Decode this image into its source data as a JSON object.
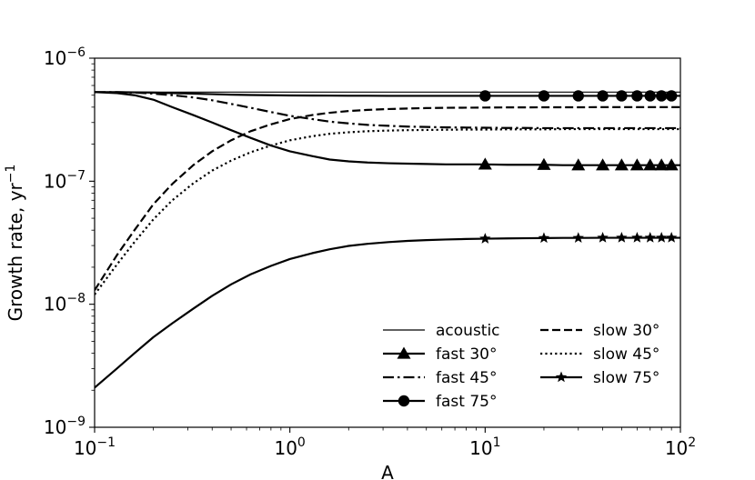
{
  "chart_data": {
    "type": "line",
    "title": "",
    "xscale": "log",
    "yscale": "log",
    "xlabel": "A",
    "ylabel": "Growth rate, yr",
    "ylabel_sup": "−1",
    "xlim": [
      0.1,
      100
    ],
    "ylim": [
      1e-09,
      1e-06
    ],
    "x_ticks": [
      {
        "base": "10",
        "exp": "−1"
      },
      {
        "base": "10",
        "exp": "0"
      },
      {
        "base": "10",
        "exp": "1"
      },
      {
        "base": "10",
        "exp": "2"
      }
    ],
    "y_ticks": [
      {
        "base": "10",
        "exp": "−9"
      },
      {
        "base": "10",
        "exp": "−8"
      },
      {
        "base": "10",
        "exp": "−7"
      },
      {
        "base": "10",
        "exp": "−6"
      }
    ],
    "legend_position": "lower-right",
    "x": [
      0.1,
      0.13,
      0.16,
      0.2,
      0.25,
      0.32,
      0.4,
      0.5,
      0.63,
      0.8,
      1.0,
      1.3,
      1.6,
      2.0,
      2.5,
      3.2,
      4.0,
      5.0,
      6.3,
      8.0,
      10,
      13,
      16,
      20,
      25,
      32,
      40,
      50,
      63,
      80,
      100
    ],
    "series": [
      {
        "name": "acoustic",
        "style": "solid-thin",
        "marker": "none",
        "values": [
          5.3e-07,
          5.3e-07,
          5.3e-07,
          5.3e-07,
          5.3e-07,
          5.3e-07,
          5.3e-07,
          5.3e-07,
          5.3e-07,
          5.3e-07,
          5.3e-07,
          5.3e-07,
          5.3e-07,
          5.3e-07,
          5.3e-07,
          5.3e-07,
          5.3e-07,
          5.3e-07,
          5.3e-07,
          5.3e-07,
          5.3e-07,
          5.3e-07,
          5.3e-07,
          5.3e-07,
          5.3e-07,
          5.3e-07,
          5.3e-07,
          5.3e-07,
          5.3e-07,
          5.3e-07,
          5.3e-07
        ]
      },
      {
        "name": "fast 30°",
        "style": "solid",
        "marker": "triangle",
        "values": [
          5.3e-07,
          5.2e-07,
          5e-07,
          4.6e-07,
          4e-07,
          3.45e-07,
          3e-07,
          2.6e-07,
          2.25e-07,
          1.95e-07,
          1.75e-07,
          1.6e-07,
          1.5e-07,
          1.45e-07,
          1.42e-07,
          1.4e-07,
          1.39e-07,
          1.38e-07,
          1.37e-07,
          1.37e-07,
          1.37e-07,
          1.36e-07,
          1.36e-07,
          1.36e-07,
          1.35e-07,
          1.35e-07,
          1.35e-07,
          1.35e-07,
          1.35e-07,
          1.35e-07,
          1.35e-07
        ]
      },
      {
        "name": "fast 45°",
        "style": "dashdot",
        "marker": "none",
        "values": [
          5.3e-07,
          5.3e-07,
          5.25e-07,
          5.15e-07,
          5e-07,
          4.8e-07,
          4.55e-07,
          4.25e-07,
          3.95e-07,
          3.65e-07,
          3.4e-07,
          3.2e-07,
          3.05e-07,
          2.95e-07,
          2.87e-07,
          2.82e-07,
          2.78e-07,
          2.76e-07,
          2.74e-07,
          2.73e-07,
          2.72e-07,
          2.71e-07,
          2.71e-07,
          2.7e-07,
          2.7e-07,
          2.7e-07,
          2.7e-07,
          2.7e-07,
          2.7e-07,
          2.7e-07,
          2.7e-07
        ]
      },
      {
        "name": "fast 75°",
        "style": "solid",
        "marker": "circle",
        "values": [
          5.3e-07,
          5.3e-07,
          5.28e-07,
          5.25e-07,
          5.2e-07,
          5.15e-07,
          5.1e-07,
          5.05e-07,
          5.02e-07,
          5e-07,
          4.98e-07,
          4.97e-07,
          4.96e-07,
          4.95e-07,
          4.95e-07,
          4.94e-07,
          4.94e-07,
          4.94e-07,
          4.94e-07,
          4.94e-07,
          4.94e-07,
          4.94e-07,
          4.94e-07,
          4.94e-07,
          4.94e-07,
          4.94e-07,
          4.94e-07,
          4.94e-07,
          4.94e-07,
          4.94e-07,
          4.94e-07
        ]
      },
      {
        "name": "slow 30°",
        "style": "dashed",
        "marker": "none",
        "values": [
          1.3e-08,
          2.5e-08,
          4e-08,
          6.5e-08,
          9.5e-08,
          1.35e-07,
          1.75e-07,
          2.15e-07,
          2.55e-07,
          2.9e-07,
          3.2e-07,
          3.45e-07,
          3.6e-07,
          3.72e-07,
          3.8e-07,
          3.86e-07,
          3.9e-07,
          3.93e-07,
          3.95e-07,
          3.96e-07,
          3.97e-07,
          3.98e-07,
          3.98e-07,
          3.99e-07,
          3.99e-07,
          3.99e-07,
          4e-07,
          4e-07,
          4e-07,
          4e-07,
          4e-07
        ]
      },
      {
        "name": "slow 45°",
        "style": "dotted",
        "marker": "none",
        "values": [
          1.2e-08,
          2.1e-08,
          3.2e-08,
          4.9e-08,
          7e-08,
          9.6e-08,
          1.22e-07,
          1.47e-07,
          1.72e-07,
          1.95e-07,
          2.15e-07,
          2.32e-07,
          2.43e-07,
          2.5e-07,
          2.55e-07,
          2.58e-07,
          2.6e-07,
          2.61e-07,
          2.62e-07,
          2.63e-07,
          2.63e-07,
          2.64e-07,
          2.64e-07,
          2.64e-07,
          2.65e-07,
          2.65e-07,
          2.65e-07,
          2.65e-07,
          2.65e-07,
          2.65e-07,
          2.65e-07
        ]
      },
      {
        "name": "slow 75°",
        "style": "solid",
        "marker": "star",
        "values": [
          2.1e-09,
          3e-09,
          4e-09,
          5.4e-09,
          7e-09,
          9.2e-09,
          1.17e-08,
          1.45e-08,
          1.75e-08,
          2.05e-08,
          2.33e-08,
          2.6e-08,
          2.8e-08,
          2.98e-08,
          3.1e-08,
          3.2e-08,
          3.27e-08,
          3.32e-08,
          3.36e-08,
          3.39e-08,
          3.41e-08,
          3.43e-08,
          3.44e-08,
          3.45e-08,
          3.46e-08,
          3.46e-08,
          3.47e-08,
          3.47e-08,
          3.47e-08,
          3.47e-08,
          3.47e-08
        ]
      }
    ],
    "marker_x": [
      10,
      20,
      30,
      40,
      50,
      60,
      70,
      80,
      90
    ]
  }
}
